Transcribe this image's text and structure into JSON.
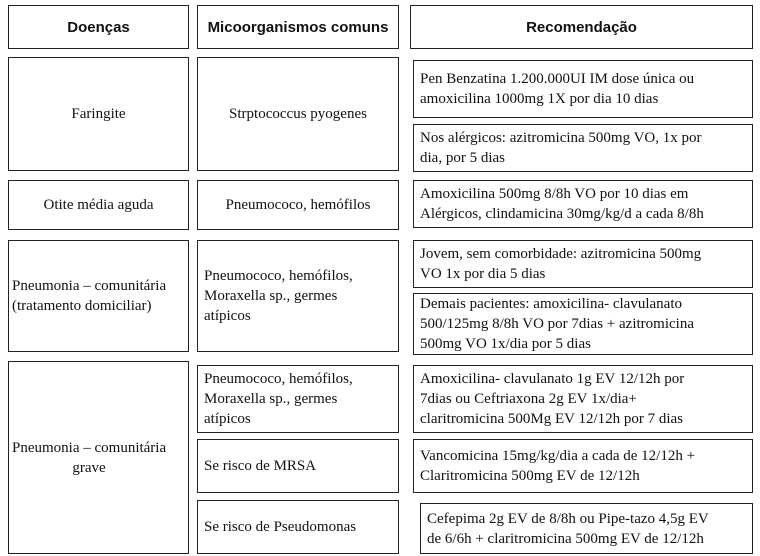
{
  "headers": {
    "diseases": "Doenças",
    "microorganisms": "Micoorganismos comuns",
    "recommendation": "Recomendação"
  },
  "rows": [
    {
      "disease": "Faringite",
      "microorganisms": [
        "Strptococcus pyogenes"
      ],
      "recommendations": [
        "Pen Benzatina 1.200.000UI IM dose única ou\namoxicilina 1000mg 1X por dia 10 dias",
        "Nos alérgicos: azitromicina 500mg VO, 1x por\ndia, por 5 dias"
      ]
    },
    {
      "disease": "Otite média aguda",
      "microorganisms": [
        "Pneumococo, hemófilos"
      ],
      "recommendations": [
        "Amoxicilina 500mg 8/8h VO por 10 dias em\nAlérgicos, clindamicina 30mg/kg/d a cada 8/8h"
      ]
    },
    {
      "disease": "Pneumonia – comunitária\n(tratamento domiciliar)",
      "microorganisms": [
        "Pneumococo, hemófilos,\nMoraxella sp., germes\natípicos"
      ],
      "recommendations": [
        "Jovem, sem comorbidade: azitromicina 500mg\nVO 1x por dia 5 dias",
        "Demais pacientes: amoxicilina- clavulanato\n500/125mg 8/8h VO por 7dias + azitromicina\n 500mg VO 1x/dia por 5 dias"
      ]
    },
    {
      "disease": "Pneumonia – comunitária\ngrave",
      "microorganisms": [
        "Pneumococo, hemófilos,\nMoraxella sp., germes\natípicos",
        "Se risco de MRSA",
        "Se risco de Pseudomonas"
      ],
      "recommendations": [
        "Amoxicilina- clavulanato 1g EV 12/12h por\n7dias ou Ceftriaxona 2g EV 1x/dia+\nclaritromicina 500Mg EV 12/12h por 7 dias",
        "Vancomicina 15mg/kg/dia a cada de 12/12h +\nClaritromicina 500mg EV de 12/12h",
        "Cefepima 2g EV de 8/8h ou Pipe-tazo 4,5g EV\nde 6/6h + claritromicina 500mg EV de 12/12h"
      ]
    }
  ]
}
